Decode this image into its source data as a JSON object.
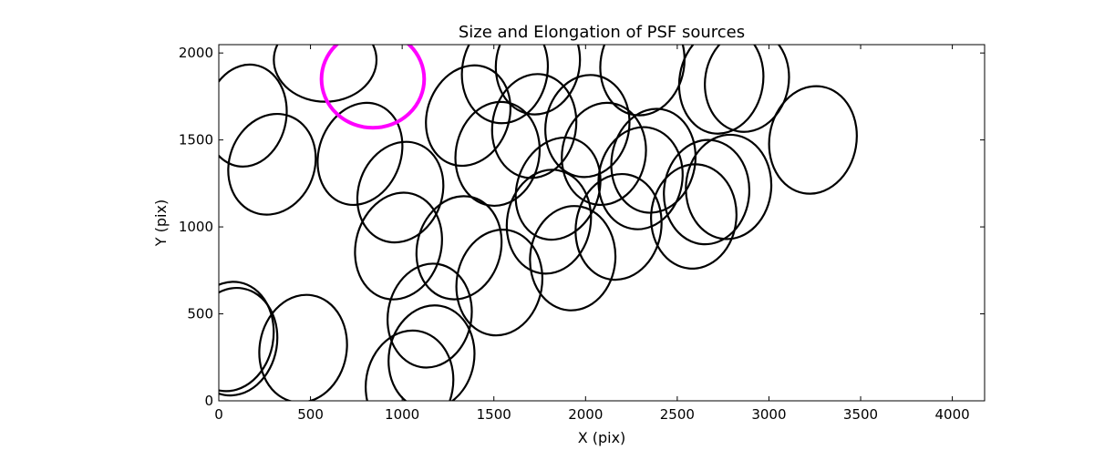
{
  "chart_data": {
    "type": "scatter",
    "title": "Size and Elongation of PSF sources",
    "xlabel": "X (pix)",
    "ylabel": "Y (pix)",
    "xlim": [
      0,
      4176
    ],
    "ylim": [
      0,
      2048
    ],
    "xticks": [
      "0",
      "500",
      "1000",
      "1500",
      "2000",
      "2500",
      "3000",
      "3500",
      "4000"
    ],
    "yticks": [
      "0",
      "500",
      "1000",
      "1500",
      "2000"
    ],
    "grid": false,
    "legend": "none",
    "ellipse_color": "#000000",
    "highlight_color": "#ff00ff",
    "sources": [
      {
        "x": 150,
        "y": 1640,
        "a": 280,
        "b": 230,
        "angle": 80
      },
      {
        "x": 290,
        "y": 1360,
        "a": 280,
        "b": 245,
        "angle": 70
      },
      {
        "x": 580,
        "y": 1960,
        "a": 280,
        "b": 240,
        "angle": 0
      },
      {
        "x": 770,
        "y": 1420,
        "a": 285,
        "b": 235,
        "angle": 70
      },
      {
        "x": 840,
        "y": 1850,
        "a": 280,
        "b": 280,
        "angle": 0,
        "highlight": true
      },
      {
        "x": 990,
        "y": 1200,
        "a": 280,
        "b": 240,
        "angle": 70
      },
      {
        "x": 980,
        "y": 890,
        "a": 295,
        "b": 245,
        "angle": 75
      },
      {
        "x": 1150,
        "y": 490,
        "a": 285,
        "b": 240,
        "angle": 80
      },
      {
        "x": 1160,
        "y": 250,
        "a": 285,
        "b": 245,
        "angle": 80
      },
      {
        "x": 1040,
        "y": 100,
        "a": 290,
        "b": 250,
        "angle": 80
      },
      {
        "x": 1310,
        "y": 880,
        "a": 285,
        "b": 240,
        "angle": 75
      },
      {
        "x": 1530,
        "y": 680,
        "a": 290,
        "b": 245,
        "angle": 80
      },
      {
        "x": 1360,
        "y": 1640,
        "a": 280,
        "b": 235,
        "angle": 70
      },
      {
        "x": 1520,
        "y": 1420,
        "a": 285,
        "b": 240,
        "angle": 80
      },
      {
        "x": 1720,
        "y": 1580,
        "a": 285,
        "b": 240,
        "angle": 80
      },
      {
        "x": 1560,
        "y": 1900,
        "a": 290,
        "b": 245,
        "angle": 80
      },
      {
        "x": 1740,
        "y": 1940,
        "a": 280,
        "b": 240,
        "angle": 80
      },
      {
        "x": 1850,
        "y": 1220,
        "a": 285,
        "b": 235,
        "angle": 70
      },
      {
        "x": 1800,
        "y": 1030,
        "a": 285,
        "b": 240,
        "angle": 80
      },
      {
        "x": 1930,
        "y": 820,
        "a": 285,
        "b": 245,
        "angle": 85
      },
      {
        "x": 2010,
        "y": 1580,
        "a": 280,
        "b": 240,
        "angle": 80
      },
      {
        "x": 2100,
        "y": 1420,
        "a": 280,
        "b": 240,
        "angle": 80
      },
      {
        "x": 2180,
        "y": 1000,
        "a": 290,
        "b": 245,
        "angle": 80
      },
      {
        "x": 2300,
        "y": 1280,
        "a": 280,
        "b": 240,
        "angle": 80
      },
      {
        "x": 2370,
        "y": 1380,
        "a": 285,
        "b": 240,
        "angle": 80
      },
      {
        "x": 2310,
        "y": 1940,
        "a": 285,
        "b": 240,
        "angle": 80
      },
      {
        "x": 2590,
        "y": 1060,
        "a": 285,
        "b": 245,
        "angle": 85
      },
      {
        "x": 2660,
        "y": 1200,
        "a": 285,
        "b": 245,
        "angle": 85
      },
      {
        "x": 2740,
        "y": 1840,
        "a": 290,
        "b": 240,
        "angle": 80
      },
      {
        "x": 2780,
        "y": 1230,
        "a": 285,
        "b": 245,
        "angle": 85
      },
      {
        "x": 2880,
        "y": 1840,
        "a": 280,
        "b": 240,
        "angle": 80
      },
      {
        "x": 3240,
        "y": 1500,
        "a": 295,
        "b": 250,
        "angle": 80
      },
      {
        "x": 60,
        "y": 370,
        "a": 300,
        "b": 250,
        "angle": 80
      },
      {
        "x": 80,
        "y": 340,
        "a": 295,
        "b": 250,
        "angle": 80
      },
      {
        "x": 460,
        "y": 300,
        "a": 295,
        "b": 250,
        "angle": 80
      }
    ]
  }
}
